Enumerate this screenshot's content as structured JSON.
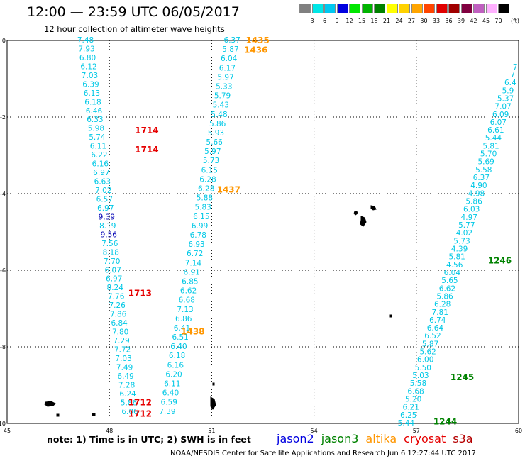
{
  "header": {
    "title": "12:00 — 23:59 UTC 06/05/2017",
    "subtitle": "12 hour collection of altimeter wave heights"
  },
  "colorbar": {
    "unit": "(ft)",
    "bins": [
      {
        "label": "3",
        "color": "#808080"
      },
      {
        "label": "6",
        "color": "#00e6e6"
      },
      {
        "label": "9",
        "color": "#00c8f0"
      },
      {
        "label": "12",
        "color": "#0000e0"
      },
      {
        "label": "15",
        "color": "#00e600"
      },
      {
        "label": "18",
        "color": "#00b400"
      },
      {
        "label": "21",
        "color": "#008200"
      },
      {
        "label": "24",
        "color": "#ffff00"
      },
      {
        "label": "27",
        "color": "#ffd200"
      },
      {
        "label": "30",
        "color": "#ffa500"
      },
      {
        "label": "33",
        "color": "#ff4500"
      },
      {
        "label": "36",
        "color": "#e00000"
      },
      {
        "label": "39",
        "color": "#a00000"
      },
      {
        "label": "42",
        "color": "#800040"
      },
      {
        "label": "45",
        "color": "#c060c0"
      },
      {
        "label": "70",
        "color": "#ffb0ff"
      },
      {
        "label": "",
        "color": "#000000"
      }
    ]
  },
  "map": {
    "lon_range": [
      45,
      60
    ],
    "lat_range": [
      -10,
      0
    ],
    "x_ticks": [
      "45",
      "48",
      "51",
      "54",
      "57",
      "60"
    ],
    "y_ticks": [
      "0",
      "-2",
      "-4",
      "-6",
      "-8",
      "-10"
    ]
  },
  "colors": {
    "cyan": "#00c8e6",
    "blue": "#0000b4",
    "jason3": "#008200",
    "altika": "#ff9600",
    "cryosat": "#e60000"
  },
  "tracks": [
    {
      "id": "track-left",
      "color_default": "cyan",
      "start": {
        "lon": 47.3,
        "lat": 0.0
      },
      "end": {
        "lon": 48.6,
        "lat": -9.7
      },
      "values": [
        "7.48",
        "7.93",
        "6.80",
        "6.12",
        "7.03",
        "6.39",
        "6.13",
        "6.18",
        "6.46",
        "6.33",
        "5.98",
        "5.74",
        "6.11",
        "6.22",
        "6.16",
        "6.97",
        "6.63",
        "7.02",
        "6.57",
        "6.97",
        "9.39",
        "8.19",
        "9.56",
        "7.56",
        "8.18",
        "7.70",
        "6.07",
        "6.97",
        "8.24",
        "7.76",
        "7.26",
        "7.86",
        "6.84",
        "7.80",
        "7.29",
        "7.72",
        "7.03",
        "7.49",
        "6.49",
        "7.28",
        "6.24",
        "5.86",
        "6.06"
      ],
      "blue_indices": [
        20,
        22
      ]
    },
    {
      "id": "track-middle",
      "color_default": "cyan",
      "start": {
        "lon": 51.6,
        "lat": 0.0
      },
      "end": {
        "lon": 49.7,
        "lat": -9.7
      },
      "values": [
        "6.37",
        "5.87",
        "6.04",
        "6.17",
        "5.97",
        "5.33",
        "5.79",
        "5.43",
        "5.48",
        "5.86",
        "5.93",
        "5.66",
        "5.97",
        "5.73",
        "6.15",
        "6.28",
        "6.28",
        "5.88",
        "5.83",
        "6.15",
        "6.99",
        "6.78",
        "6.93",
        "6.72",
        "7.14",
        "6.91",
        "6.85",
        "6.62",
        "6.68",
        "7.13",
        "6.86",
        "6.41",
        "6.51",
        "6.40",
        "6.18",
        "6.16",
        "6.20",
        "6.11",
        "6.40",
        "6.59",
        "7.39"
      ],
      "blue_indices": []
    },
    {
      "id": "track-right",
      "color_default": "cyan",
      "start": {
        "lon": 59.9,
        "lat": -0.7
      },
      "end": {
        "lon": 56.7,
        "lat": -10.0
      },
      "values": [
        "7",
        "7",
        "6.4",
        "5.9",
        "5.37",
        "7.07",
        "6.09",
        "6.07",
        "6.61",
        "5.44",
        "5.81",
        "5.70",
        "5.69",
        "5.58",
        "6.37",
        "4.90",
        "4.98",
        "5.86",
        "6.03",
        "4.97",
        "5.77",
        "4.02",
        "5.73",
        "4.39",
        "5.81",
        "4.56",
        "6.04",
        "5.65",
        "6.62",
        "5.86",
        "6.28",
        "7.81",
        "6.74",
        "6.64",
        "6.52",
        "5.87",
        "5.62",
        "6.00",
        "5.50",
        "5.03",
        "5.58",
        "6.68",
        "5.20",
        "6.21",
        "6.25",
        "5.44"
      ],
      "blue_indices": []
    }
  ],
  "time_labels": [
    {
      "text": "1435",
      "color": "altika",
      "lon": 52.0,
      "lat": 0.0
    },
    {
      "text": "1436",
      "color": "altika",
      "lon": 51.95,
      "lat": -0.25
    },
    {
      "text": "1437",
      "color": "altika",
      "lon": 51.15,
      "lat": -3.9
    },
    {
      "text": "1438",
      "color": "altika",
      "lon": 50.1,
      "lat": -7.6
    },
    {
      "text": "1714",
      "color": "cryosat",
      "lon": 48.75,
      "lat": -2.35
    },
    {
      "text": "1714",
      "color": "cryosat",
      "lon": 48.75,
      "lat": -2.85
    },
    {
      "text": "1713",
      "color": "cryosat",
      "lon": 48.55,
      "lat": -6.6
    },
    {
      "text": "1712",
      "color": "cryosat",
      "lon": 48.55,
      "lat": -9.45
    },
    {
      "text": "1712",
      "color": "cryosat",
      "lon": 48.55,
      "lat": -9.75
    },
    {
      "text": "1246",
      "color": "jason3",
      "lon": 59.1,
      "lat": -5.75
    },
    {
      "text": "1245",
      "color": "jason3",
      "lon": 58.0,
      "lat": -8.8
    },
    {
      "text": "1244",
      "color": "jason3",
      "lon": 57.5,
      "lat": -9.95
    }
  ],
  "footer": {
    "note": "note: 1) Time is in UTC; 2) SWH is in feet",
    "satellites": [
      {
        "name": "jason2",
        "color": "#0000e0"
      },
      {
        "name": "jason3",
        "color": "#008200"
      },
      {
        "name": "altika",
        "color": "#ff9600"
      },
      {
        "name": "cryosat",
        "color": "#e60000"
      },
      {
        "name": "s3a",
        "color": "#b40000"
      }
    ],
    "credit": "NOAA/NESDIS Center for Satellite Applications and Research    Jun  6 12:27:44 UTC 2017"
  }
}
